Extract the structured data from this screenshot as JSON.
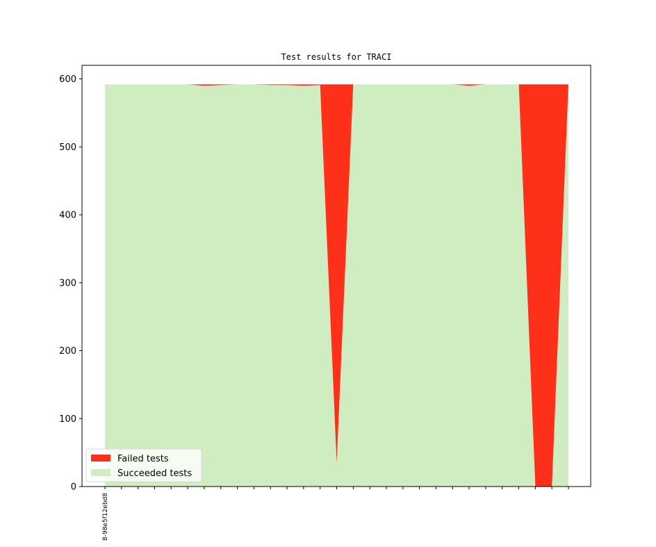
{
  "chart_data": {
    "type": "area",
    "stacked": true,
    "title": "Test results for TRACI",
    "xlabel": "",
    "ylabel": "",
    "ylim": [
      0,
      620
    ],
    "yticks": [
      0,
      100,
      200,
      300,
      400,
      500,
      600
    ],
    "xtick_labels": [
      "8-98e5f12ebd8"
    ],
    "grid": false,
    "legend_position": "lower-left",
    "colors": {
      "failed": "#ff3019",
      "succeeded": "#cfedc0",
      "axes": "#000000",
      "legend_edge": "#d9d9d9"
    },
    "x": [
      0,
      1,
      2,
      3,
      4,
      5,
      6,
      7,
      8,
      9,
      10,
      11,
      12,
      13,
      14,
      15,
      16,
      17,
      18,
      19,
      20,
      21,
      22,
      23,
      24,
      25,
      26,
      27,
      28
    ],
    "series": [
      {
        "name": "Succeeded tests",
        "values": [
          592,
          592,
          592,
          592,
          592,
          592,
          590,
          591,
          592,
          592,
          591,
          591,
          590,
          591,
          35,
          592,
          592,
          592,
          592,
          592,
          592,
          592,
          590,
          592,
          592,
          592,
          0,
          0,
          592
        ]
      },
      {
        "name": "Failed tests",
        "values": [
          0,
          0,
          0,
          0,
          0,
          0,
          2,
          1,
          0,
          0,
          1,
          1,
          2,
          1,
          557,
          0,
          0,
          0,
          0,
          0,
          0,
          0,
          2,
          0,
          0,
          0,
          592,
          592,
          0
        ]
      }
    ]
  }
}
